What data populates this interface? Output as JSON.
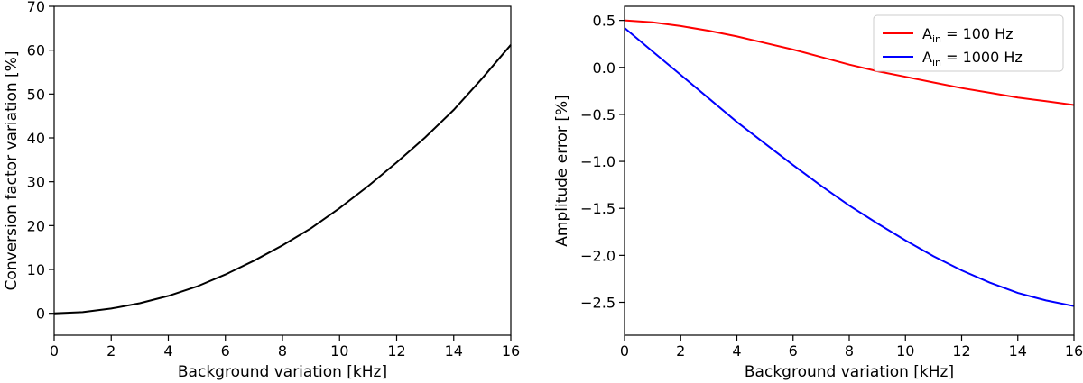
{
  "chart_data": [
    {
      "type": "line",
      "title": "",
      "xlabel": "Background variation [kHz]",
      "ylabel": "Conversion factor variation [%]",
      "xlim": [
        0,
        16
      ],
      "ylim": [
        -5,
        70
      ],
      "xticks": [
        0,
        2,
        4,
        6,
        8,
        10,
        12,
        14,
        16
      ],
      "yticks": [
        0,
        10,
        20,
        30,
        40,
        50,
        60,
        70
      ],
      "grid": false,
      "series": [
        {
          "color": "#000000",
          "x": [
            0,
            1,
            2,
            3,
            4,
            5,
            6,
            7,
            8,
            9,
            10,
            11,
            12,
            13,
            14,
            15,
            16
          ],
          "y": [
            0,
            0.27,
            1.08,
            2.3,
            3.95,
            6.1,
            8.85,
            12.0,
            15.5,
            19.4,
            24.0,
            29.0,
            34.4,
            40.1,
            46.4,
            53.6,
            61.2
          ]
        }
      ]
    },
    {
      "type": "line",
      "title": "",
      "xlabel": "Background variation [kHz]",
      "ylabel": "Amplitude error [%]",
      "xlim": [
        0,
        16
      ],
      "ylim": [
        -2.85,
        0.65
      ],
      "xticks": [
        0,
        2,
        4,
        6,
        8,
        10,
        12,
        14,
        16
      ],
      "yticks": [
        0.5,
        0.0,
        -0.5,
        -1.0,
        -1.5,
        -2.0,
        -2.5
      ],
      "ytick_labels": [
        "0.5",
        "0.0",
        "−0.5",
        "−1.0",
        "−1.5",
        "−2.0",
        "−2.5"
      ],
      "grid": false,
      "legend_position": "top-right",
      "series": [
        {
          "name_main": "A",
          "name_sub": "in",
          "name_rest": " = 100 Hz",
          "color": "#ff0000",
          "x": [
            0,
            1,
            2,
            3,
            4,
            5,
            6,
            7,
            8,
            9,
            10,
            11,
            12,
            13,
            14,
            15,
            16
          ],
          "y": [
            0.5,
            0.48,
            0.44,
            0.39,
            0.33,
            0.26,
            0.19,
            0.11,
            0.03,
            -0.04,
            -0.1,
            -0.16,
            -0.22,
            -0.27,
            -0.32,
            -0.36,
            -0.4
          ]
        },
        {
          "name_main": "A",
          "name_sub": "in",
          "name_rest": " = 1000 Hz",
          "color": "#0000ff",
          "x": [
            0,
            1,
            2,
            3,
            4,
            5,
            6,
            7,
            8,
            9,
            10,
            11,
            12,
            13,
            14,
            15,
            16
          ],
          "y": [
            0.42,
            0.17,
            -0.08,
            -0.33,
            -0.58,
            -0.81,
            -1.04,
            -1.26,
            -1.47,
            -1.66,
            -1.84,
            -2.01,
            -2.16,
            -2.29,
            -2.4,
            -2.48,
            -2.54
          ]
        }
      ]
    }
  ]
}
